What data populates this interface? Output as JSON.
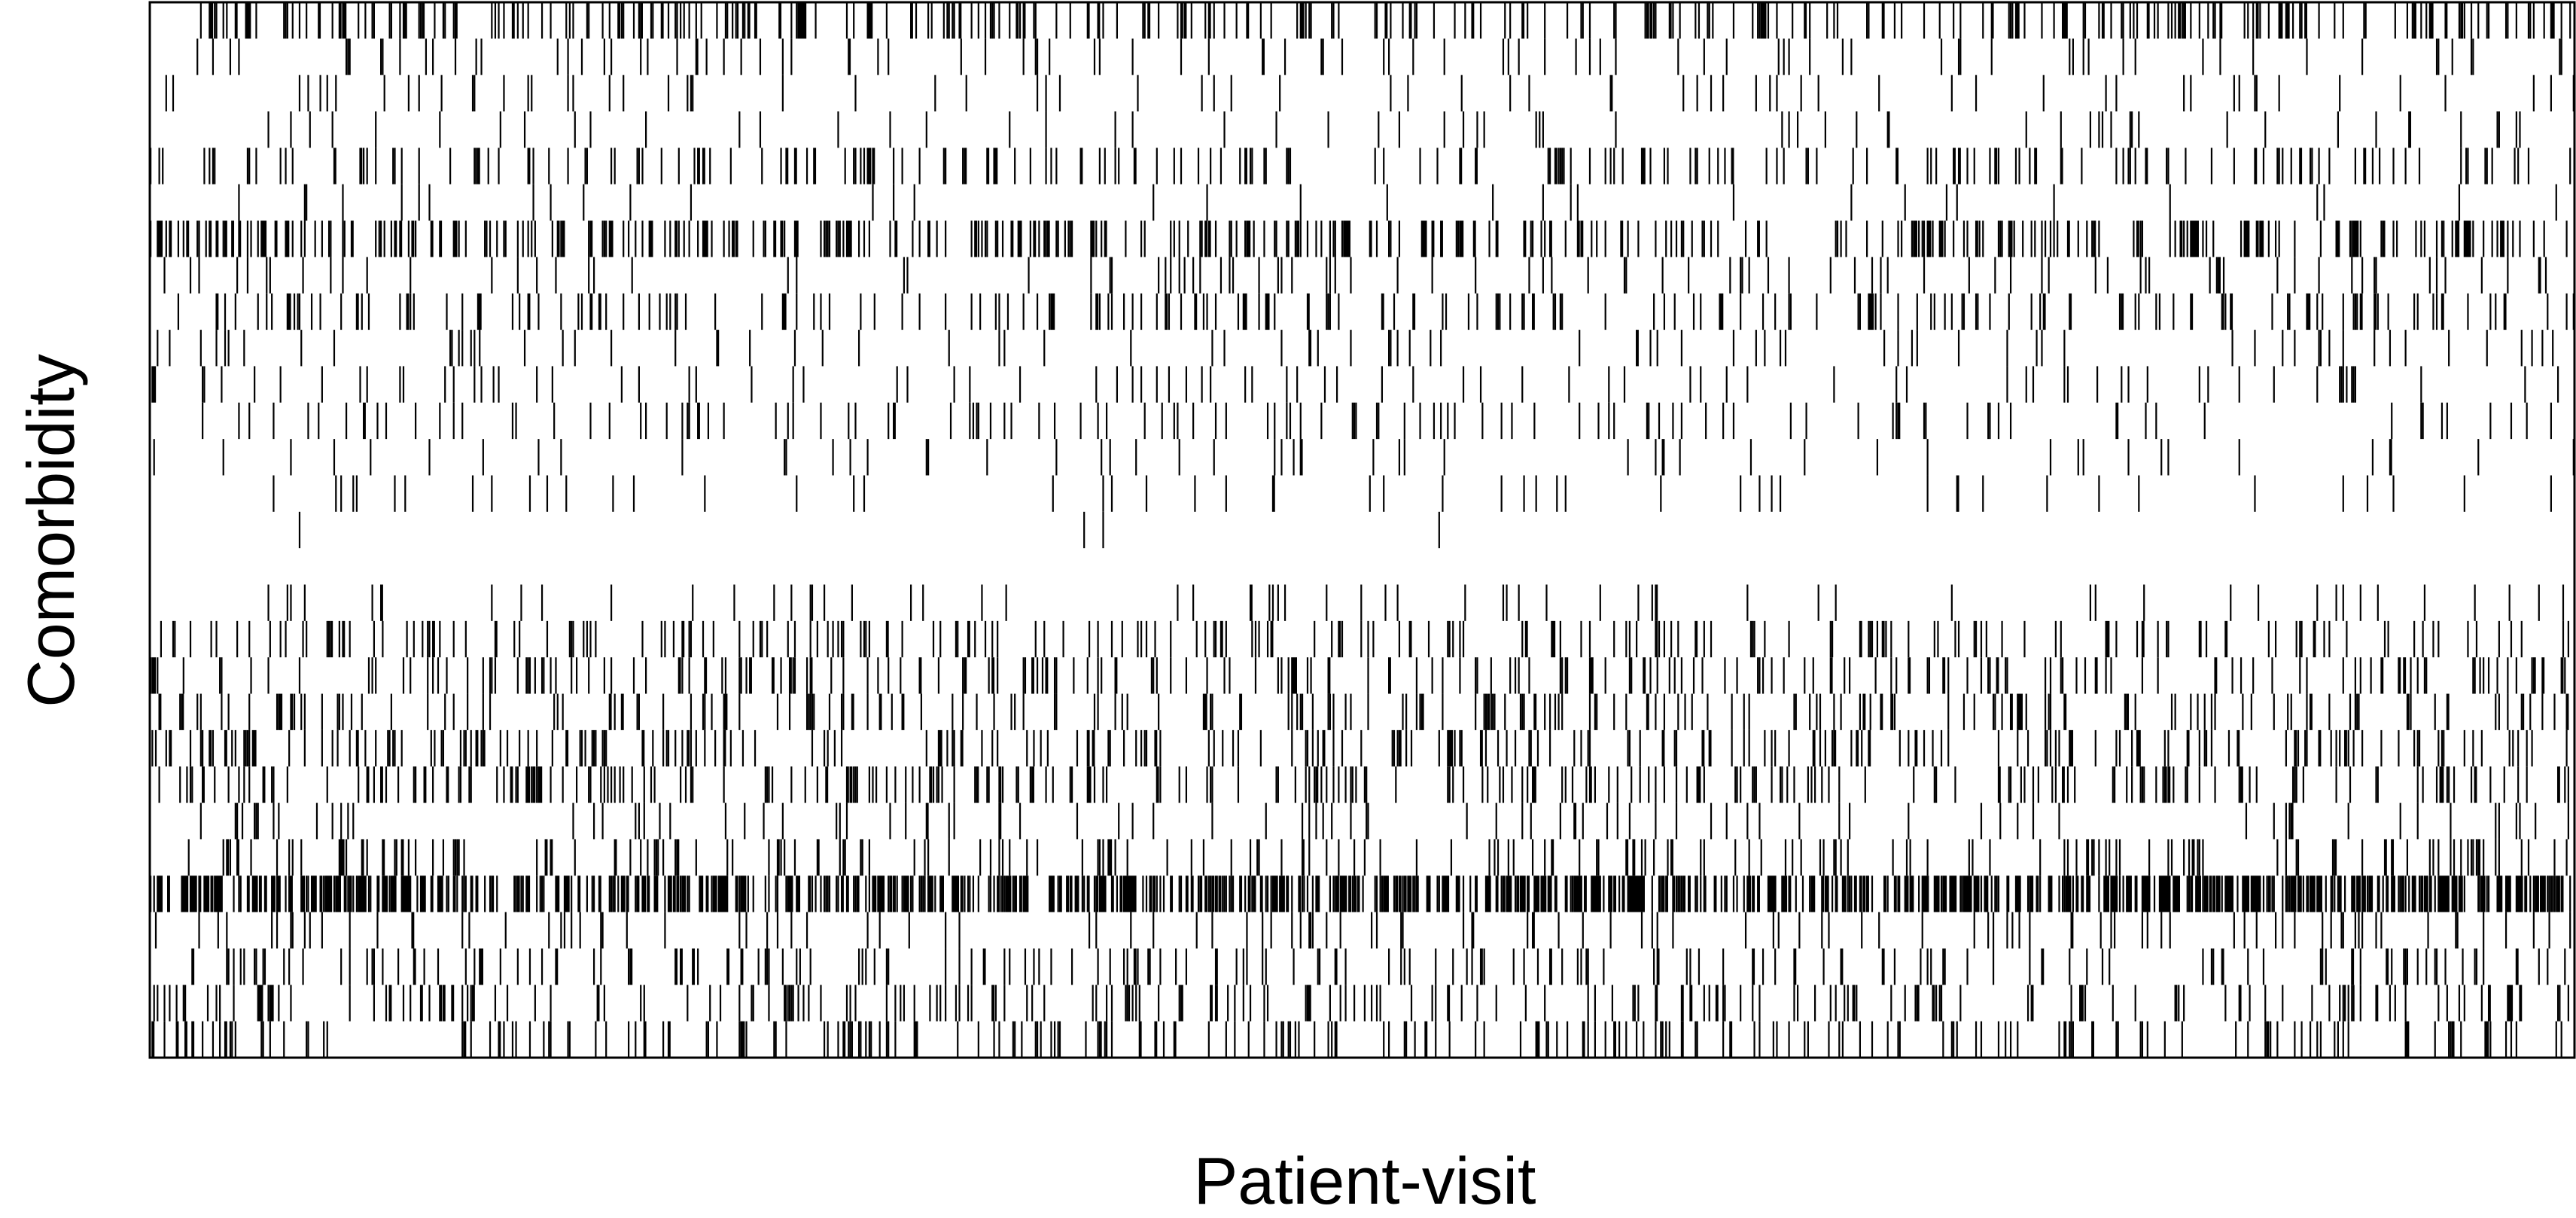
{
  "chart_data": {
    "type": "heatmap",
    "title": "",
    "xlabel": "Patient-visit",
    "ylabel": "Comorbidity",
    "x_tick_labels": [],
    "y_tick_labels": [],
    "grid": false,
    "legend": "none",
    "n_rows": 29,
    "n_columns": 1400,
    "cell_values": [
      0,
      1
    ],
    "colors": {
      "present": "#000000",
      "absent": "#ffffff",
      "frame": "#000000"
    },
    "row_density": [
      0.22,
      0.07,
      0.05,
      0.05,
      0.14,
      0.02,
      0.25,
      0.08,
      0.15,
      0.06,
      0.05,
      0.08,
      0.04,
      0.04,
      0.004,
      0.0,
      0.04,
      0.15,
      0.15,
      0.13,
      0.18,
      0.18,
      0.06,
      0.12,
      0.52,
      0.08,
      0.12,
      0.15,
      0.14
    ],
    "random_seed": 20240517
  }
}
